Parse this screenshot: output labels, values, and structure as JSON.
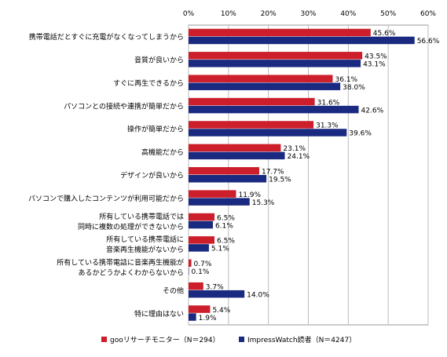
{
  "chart_data": {
    "type": "bar",
    "orientation": "horizontal",
    "title": "",
    "xlabel": "",
    "ylabel": "",
    "xlim": [
      0,
      60
    ],
    "x_ticks": [
      "0%",
      "10%",
      "20%",
      "30%",
      "40%",
      "50%",
      "60%"
    ],
    "x_axis_position": "top",
    "grid": true,
    "legend_position": "bottom",
    "categories": [
      [
        "携帯電話だとすぐに充電がなくなってしまうから"
      ],
      [
        "音質が良いから"
      ],
      [
        "すぐに再生できるから"
      ],
      [
        "パソコンとの接続や連携が簡単だから"
      ],
      [
        "操作が簡単だから"
      ],
      [
        "高機能だから"
      ],
      [
        "デザインが良いから"
      ],
      [
        "パソコンで購入したコンテンツが利用可能だから"
      ],
      [
        "所有している携帯電話では",
        "同時に複数の処理ができないから"
      ],
      [
        "所有している携帯電話に",
        "音楽再生機能がないから"
      ],
      [
        "所有している携帯電話に音楽再生機能が",
        "あるかどうかよくわからないから"
      ],
      [
        "その他"
      ],
      [
        "特に理由はない"
      ]
    ],
    "series": [
      {
        "name": "gooリサーチモニター（N＝294）",
        "color": "#cc1f2b",
        "values": [
          45.6,
          43.5,
          36.1,
          31.6,
          31.3,
          23.1,
          17.7,
          11.9,
          6.5,
          6.5,
          0.7,
          3.7,
          5.4
        ],
        "labels": [
          "45.6%",
          "43.5%",
          "36.1%",
          "31.6%",
          "31.3%",
          "23.1%",
          "17.7%",
          "11.9%",
          "6.5%",
          "6.5%",
          "0.7%",
          "3.7%",
          "5.4%"
        ]
      },
      {
        "name": "ImpressWatch読者（N＝4247）",
        "color": "#1a2a80",
        "values": [
          56.6,
          43.1,
          38.0,
          42.6,
          39.6,
          24.1,
          19.5,
          15.3,
          6.1,
          5.1,
          0.1,
          14.0,
          1.9
        ],
        "labels": [
          "56.6%",
          "43.1%",
          "38.0%",
          "42.6%",
          "39.6%",
          "24.1%",
          "19.5%",
          "15.3%",
          "6.1%",
          "5.1%",
          "0.1%",
          "14.0%",
          "1.9%"
        ]
      }
    ]
  }
}
